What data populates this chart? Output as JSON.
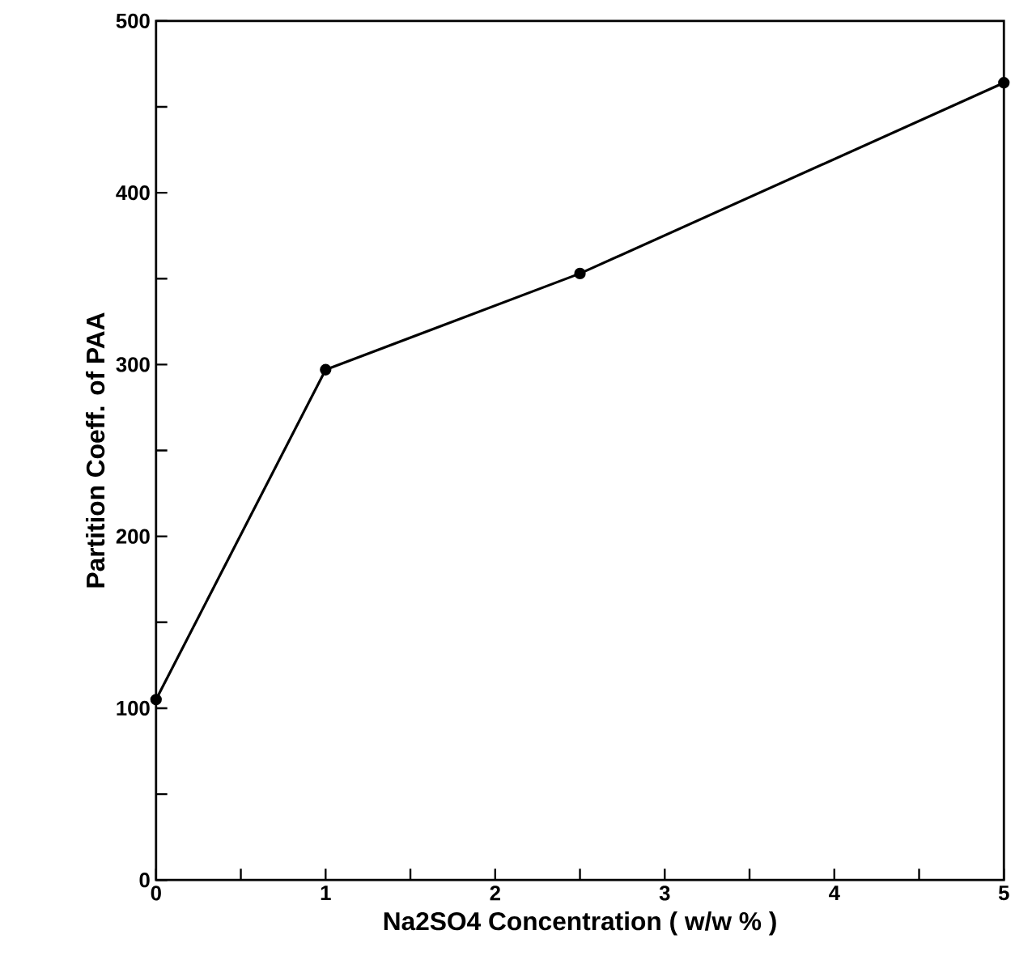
{
  "chart_data": {
    "type": "line",
    "xlabel": "Na2SO4  Concentration ( w/w % )",
    "ylabel": "Partition Coeff. of PAA",
    "x": [
      0,
      1,
      2.5,
      5
    ],
    "series": [
      {
        "color": "#000000",
        "values": [
          105,
          297,
          353,
          464
        ]
      }
    ],
    "xlim": [
      0,
      5
    ],
    "xticks": [
      0,
      {
        "value": 0.5,
        "label": null
      },
      1,
      {
        "value": 1.5,
        "label": null
      },
      2,
      {
        "value": 2.5,
        "label": null
      },
      3,
      {
        "value": 3.5,
        "label": null
      },
      4,
      {
        "value": 4.5,
        "label": null
      },
      5
    ],
    "ylim": [
      0,
      500
    ],
    "yticks": [
      0,
      {
        "value": 50,
        "label": null
      },
      100,
      {
        "value": 150,
        "label": null
      },
      200,
      {
        "value": 250,
        "label": null
      },
      300,
      {
        "value": 350,
        "label": null
      },
      400,
      {
        "value": 450,
        "label": null
      },
      500
    ],
    "grid": false,
    "marker": "circle",
    "line_style": "solid"
  }
}
